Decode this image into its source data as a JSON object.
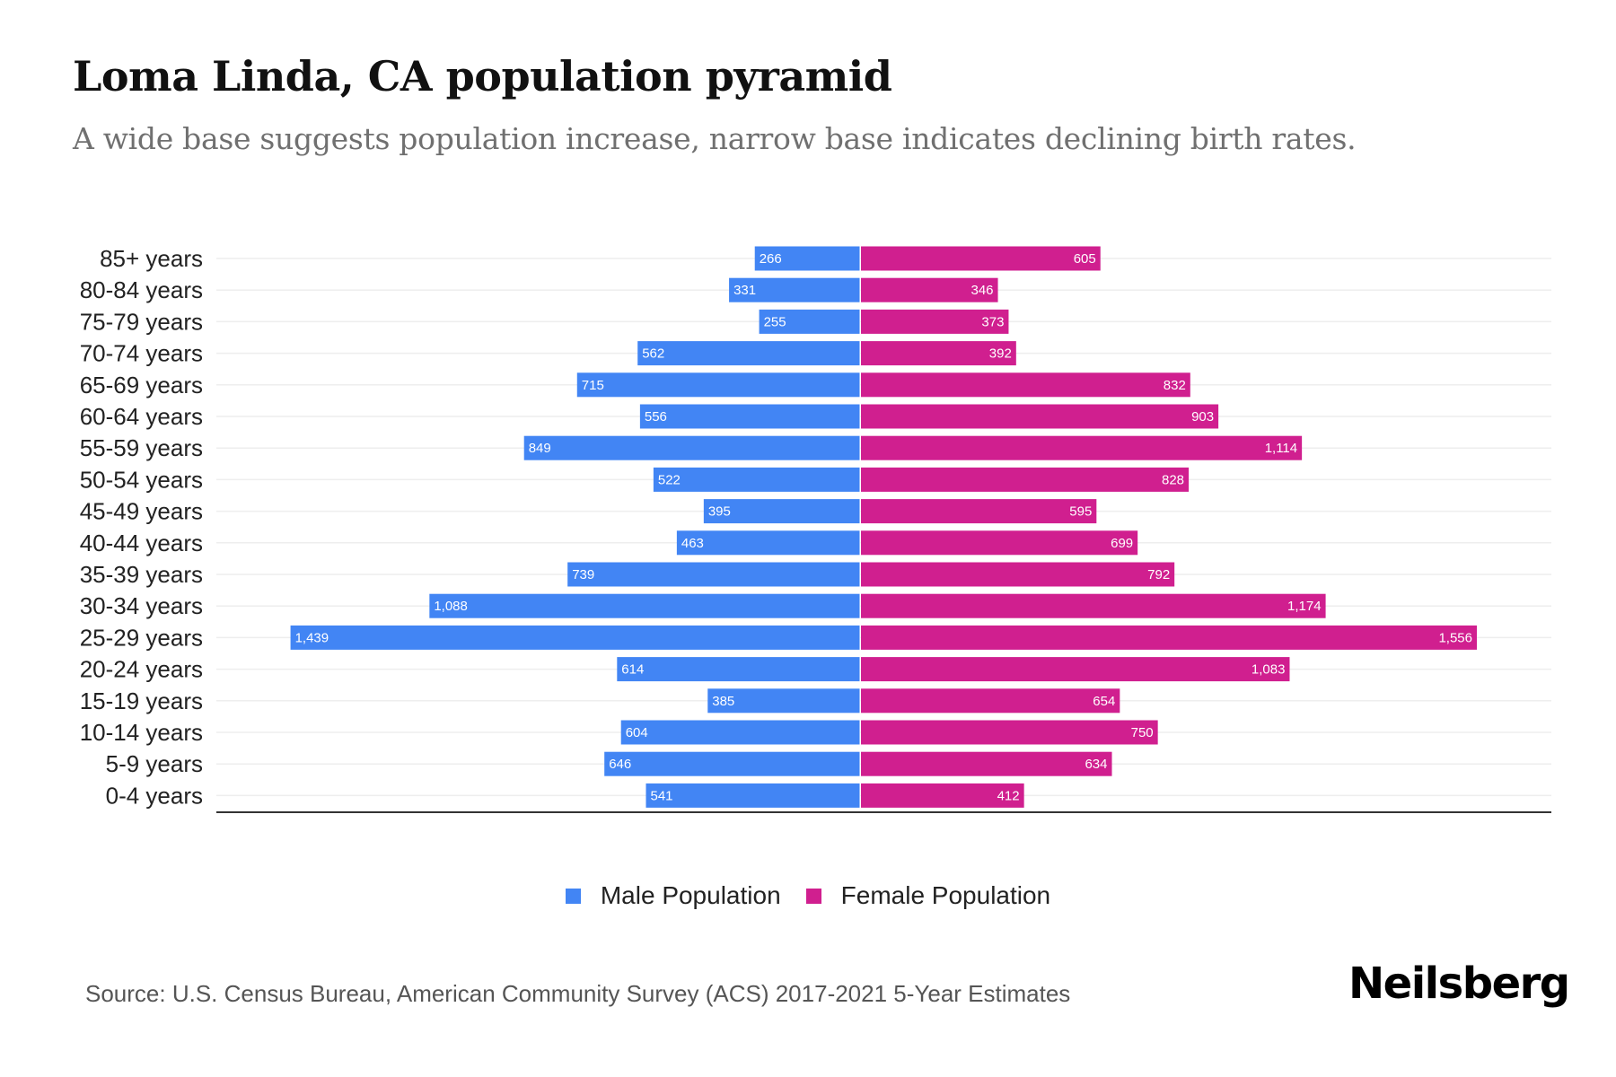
{
  "header": {
    "title": "Loma Linda, CA population pyramid",
    "subtitle": "A wide base suggests population increase, narrow base indicates declining birth rates."
  },
  "legend": {
    "male_label": "Male Population",
    "female_label": "Female Population"
  },
  "footer": {
    "source": "Source: U.S. Census Bureau, American Community Survey (ACS) 2017-2021 5-Year Estimates",
    "logo": "Neilsberg"
  },
  "colors": {
    "male": "#4285f4",
    "female": "#d01f8f",
    "grid": "#eeeeee",
    "axis": "#333333"
  },
  "chart_data": {
    "type": "bar",
    "orientation": "horizontal-pyramid",
    "title": "Loma Linda, CA population pyramid",
    "xlabel": "",
    "ylabel": "",
    "grid": true,
    "legend_position": "bottom",
    "categories": [
      "85+ years",
      "80-84 years",
      "75-79 years",
      "70-74 years",
      "65-69 years",
      "60-64 years",
      "55-59 years",
      "50-54 years",
      "45-49 years",
      "40-44 years",
      "35-39 years",
      "30-34 years",
      "25-29 years",
      "20-24 years",
      "15-19 years",
      "10-14 years",
      "5-9 years",
      "0-4 years"
    ],
    "series": [
      {
        "name": "Male Population",
        "side": "left",
        "values": [
          266,
          331,
          255,
          562,
          715,
          556,
          849,
          522,
          395,
          463,
          739,
          1088,
          1439,
          614,
          385,
          604,
          646,
          541
        ],
        "labels": [
          "266",
          "331",
          "255",
          "562",
          "715",
          "556",
          "849",
          "522",
          "395",
          "463",
          "739",
          "1,088",
          "1,439",
          "614",
          "385",
          "604",
          "646",
          "541"
        ]
      },
      {
        "name": "Female Population",
        "side": "right",
        "values": [
          605,
          346,
          373,
          392,
          832,
          903,
          1114,
          828,
          595,
          699,
          792,
          1174,
          1556,
          1083,
          654,
          750,
          634,
          412
        ],
        "labels": [
          "605",
          "346",
          "373",
          "392",
          "832",
          "903",
          "1,114",
          "828",
          "595",
          "699",
          "792",
          "1,174",
          "1,556",
          "1,083",
          "654",
          "750",
          "634",
          "412"
        ]
      }
    ]
  }
}
